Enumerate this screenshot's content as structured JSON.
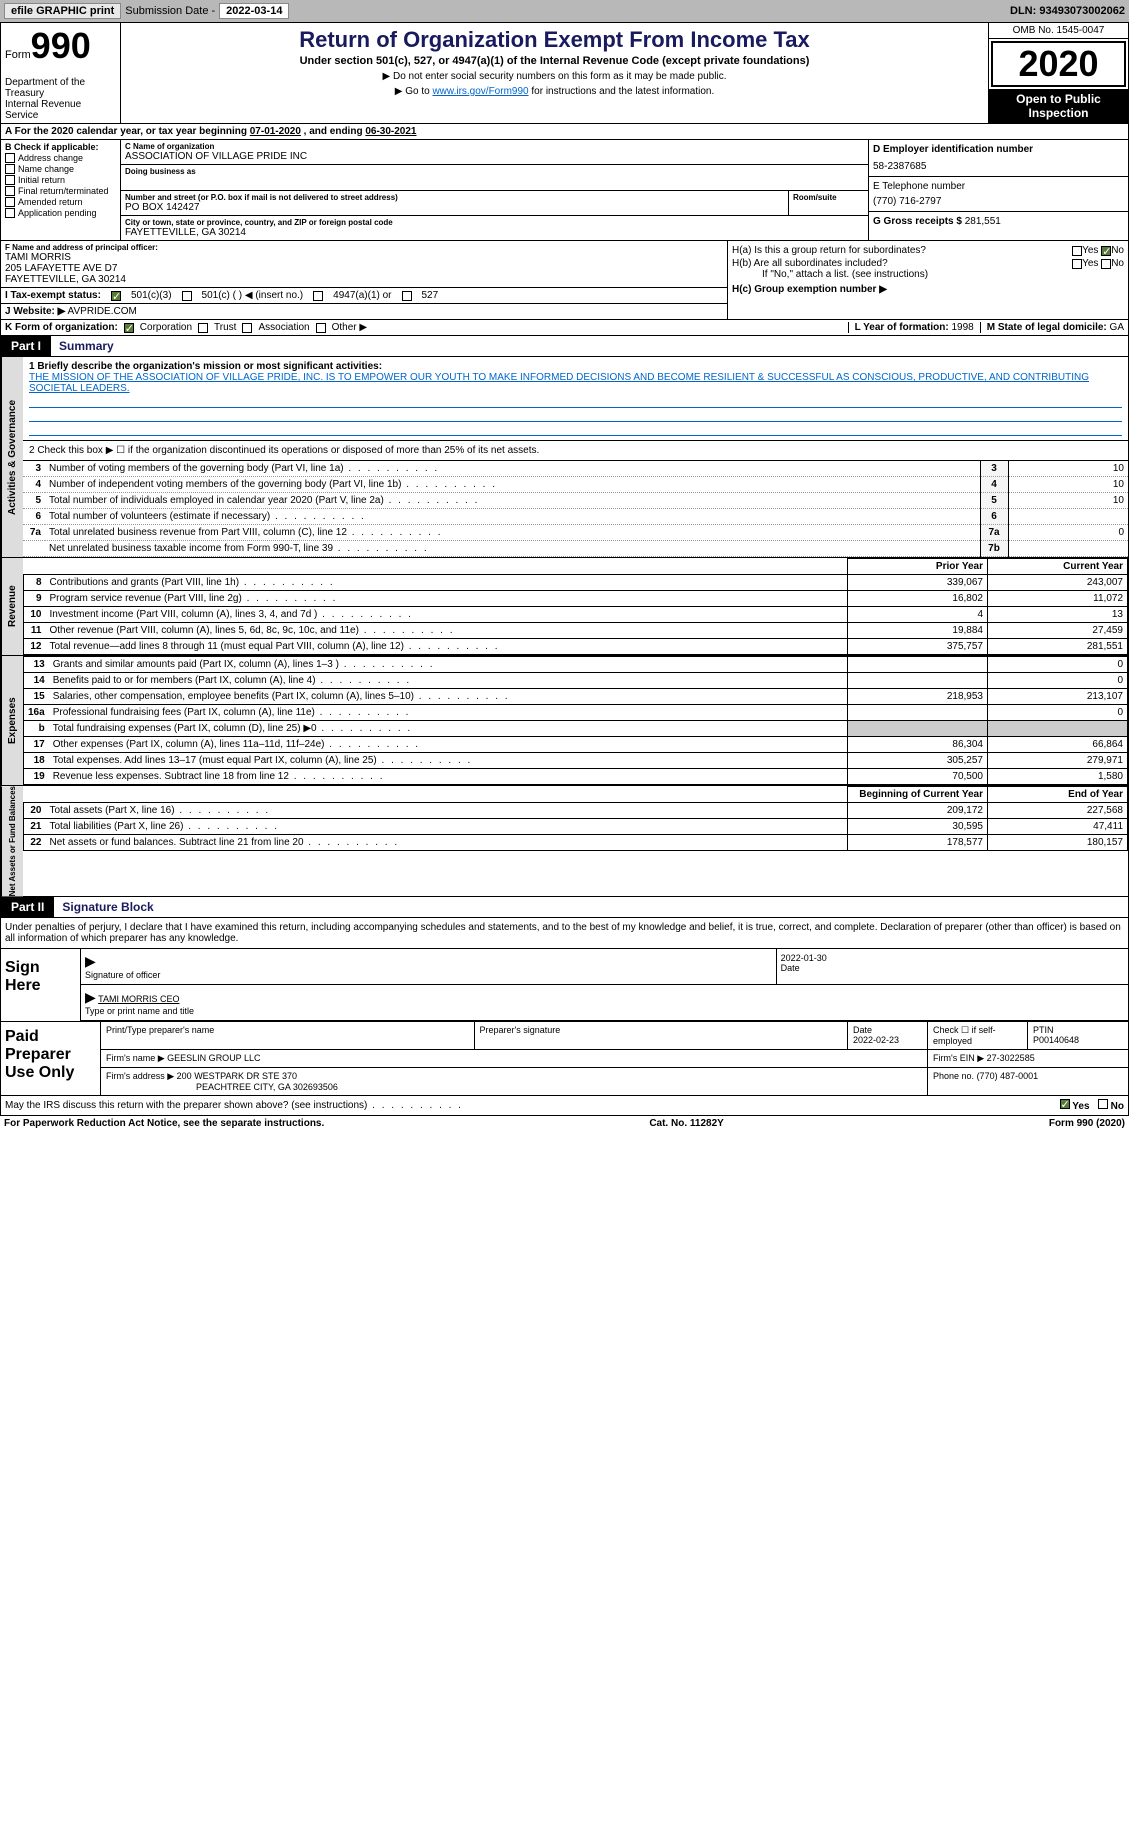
{
  "topbar": {
    "efile_label": "efile GRAPHIC print",
    "sub_date_label": "Submission Date -",
    "sub_date": "2022-03-14",
    "dln_label": "DLN:",
    "dln": "93493073002062"
  },
  "header": {
    "form_word": "Form",
    "form_num": "990",
    "dept": "Department of the Treasury\nInternal Revenue Service",
    "title": "Return of Organization Exempt From Income Tax",
    "subtitle": "Under section 501(c), 527, or 4947(a)(1) of the Internal Revenue Code (except private foundations)",
    "note1": "▶ Do not enter social security numbers on this form as it may be made public.",
    "note2_pre": "▶ Go to ",
    "note2_link": "www.irs.gov/Form990",
    "note2_post": " for instructions and the latest information.",
    "omb": "OMB No. 1545-0047",
    "year": "2020",
    "open": "Open to Public Inspection"
  },
  "period": {
    "text_a": "A For the 2020 calendar year, or tax year beginning ",
    "begin": "07-01-2020",
    "text_b": " , and ending ",
    "end": "06-30-2021"
  },
  "section_b": {
    "header": "B Check if applicable:",
    "items": [
      "Address change",
      "Name change",
      "Initial return",
      "Final return/terminated",
      "Amended return",
      "Application pending"
    ]
  },
  "section_c": {
    "label": "C Name of organization",
    "org_name": "ASSOCIATION OF VILLAGE PRIDE INC",
    "dba_label": "Doing business as",
    "addr_label": "Number and street (or P.O. box if mail is not delivered to street address)",
    "room_label": "Room/suite",
    "addr": "PO BOX 142427",
    "city_label": "City or town, state or province, country, and ZIP or foreign postal code",
    "city": "FAYETTEVILLE, GA  30214"
  },
  "section_d": {
    "label": "D Employer identification number",
    "ein": "58-2387685"
  },
  "section_e": {
    "label": "E Telephone number",
    "phone": "(770) 716-2797"
  },
  "section_g": {
    "label": "G Gross receipts $",
    "amount": "281,551"
  },
  "section_f": {
    "label": "F Name and address of principal officer:",
    "name": "TAMI MORRIS",
    "addr1": "205 LAFAYETTE AVE D7",
    "addr2": "FAYETTEVILLE, GA  30214"
  },
  "section_h": {
    "ha_label": "H(a)  Is this a group return for subordinates?",
    "hb_label": "H(b)  Are all subordinates included?",
    "hb_note": "If \"No,\" attach a list. (see instructions)",
    "hc_label": "H(c)  Group exemption number ▶",
    "yes": "Yes",
    "no": "No"
  },
  "section_i": {
    "label": "I    Tax-exempt status:",
    "opts": [
      "501(c)(3)",
      "501(c) (  ) ◀ (insert no.)",
      "4947(a)(1) or",
      "527"
    ]
  },
  "section_j": {
    "label": "J    Website: ▶",
    "url": "AVPRIDE.COM"
  },
  "section_k": {
    "label": "K Form of organization:",
    "opts": [
      "Corporation",
      "Trust",
      "Association",
      "Other ▶"
    ]
  },
  "section_lm": {
    "l_label": "L Year of formation:",
    "l_val": "1998",
    "m_label": "M State of legal domicile:",
    "m_val": "GA"
  },
  "part1": {
    "label": "Part I",
    "title": "Summary",
    "line1_label": "1  Briefly describe the organization's mission or most significant activities:",
    "mission": "THE MISSION OF THE ASSOCIATION OF VILLAGE PRIDE, INC. IS TO EMPOWER OUR YOUTH TO MAKE INFORMED DECISIONS AND BECOME RESILIENT & SUCCESSFUL AS CONSCIOUS, PRODUCTIVE, AND CONTRIBUTING SOCIETAL LEADERS.",
    "line2": "2  Check this box ▶ ☐  if the organization discontinued its operations or disposed of more than 25% of its net assets.",
    "strip_gov": "Activities & Governance",
    "strip_rev": "Revenue",
    "strip_exp": "Expenses",
    "strip_net": "Net Assets or Fund Balances",
    "gov_rows": [
      {
        "n": "3",
        "d": "Number of voting members of the governing body (Part VI, line 1a)",
        "box": "3",
        "v": "10"
      },
      {
        "n": "4",
        "d": "Number of independent voting members of the governing body (Part VI, line 1b)",
        "box": "4",
        "v": "10"
      },
      {
        "n": "5",
        "d": "Total number of individuals employed in calendar year 2020 (Part V, line 2a)",
        "box": "5",
        "v": "10"
      },
      {
        "n": "6",
        "d": "Total number of volunteers (estimate if necessary)",
        "box": "6",
        "v": ""
      },
      {
        "n": "7a",
        "d": "Total unrelated business revenue from Part VIII, column (C), line 12",
        "box": "7a",
        "v": "0"
      },
      {
        "n": "",
        "d": "Net unrelated business taxable income from Form 990-T, line 39",
        "box": "7b",
        "v": ""
      }
    ],
    "col_prior": "Prior Year",
    "col_curr": "Current Year",
    "rev_rows": [
      {
        "n": "8",
        "d": "Contributions and grants (Part VIII, line 1h)",
        "p": "339,067",
        "c": "243,007"
      },
      {
        "n": "9",
        "d": "Program service revenue (Part VIII, line 2g)",
        "p": "16,802",
        "c": "11,072"
      },
      {
        "n": "10",
        "d": "Investment income (Part VIII, column (A), lines 3, 4, and 7d )",
        "p": "4",
        "c": "13"
      },
      {
        "n": "11",
        "d": "Other revenue (Part VIII, column (A), lines 5, 6d, 8c, 9c, 10c, and 11e)",
        "p": "19,884",
        "c": "27,459"
      },
      {
        "n": "12",
        "d": "Total revenue—add lines 8 through 11 (must equal Part VIII, column (A), line 12)",
        "p": "375,757",
        "c": "281,551"
      }
    ],
    "exp_rows": [
      {
        "n": "13",
        "d": "Grants and similar amounts paid (Part IX, column (A), lines 1–3 )",
        "p": "",
        "c": "0"
      },
      {
        "n": "14",
        "d": "Benefits paid to or for members (Part IX, column (A), line 4)",
        "p": "",
        "c": "0"
      },
      {
        "n": "15",
        "d": "Salaries, other compensation, employee benefits (Part IX, column (A), lines 5–10)",
        "p": "218,953",
        "c": "213,107"
      },
      {
        "n": "16a",
        "d": "Professional fundraising fees (Part IX, column (A), line 11e)",
        "p": "",
        "c": "0"
      },
      {
        "n": "b",
        "d": "Total fundraising expenses (Part IX, column (D), line 25) ▶0",
        "p": "SHADE",
        "c": "SHADE"
      },
      {
        "n": "17",
        "d": "Other expenses (Part IX, column (A), lines 11a–11d, 11f–24e)",
        "p": "86,304",
        "c": "66,864"
      },
      {
        "n": "18",
        "d": "Total expenses. Add lines 13–17 (must equal Part IX, column (A), line 25)",
        "p": "305,257",
        "c": "279,971"
      },
      {
        "n": "19",
        "d": "Revenue less expenses. Subtract line 18 from line 12",
        "p": "70,500",
        "c": "1,580"
      }
    ],
    "col_begin": "Beginning of Current Year",
    "col_end": "End of Year",
    "net_rows": [
      {
        "n": "20",
        "d": "Total assets (Part X, line 16)",
        "p": "209,172",
        "c": "227,568"
      },
      {
        "n": "21",
        "d": "Total liabilities (Part X, line 26)",
        "p": "30,595",
        "c": "47,411"
      },
      {
        "n": "22",
        "d": "Net assets or fund balances. Subtract line 21 from line 20",
        "p": "178,577",
        "c": "180,157"
      }
    ]
  },
  "part2": {
    "label": "Part II",
    "title": "Signature Block",
    "intro": "Under penalties of perjury, I declare that I have examined this return, including accompanying schedules and statements, and to the best of my knowledge and belief, it is true, correct, and complete. Declaration of preparer (other than officer) is based on all information of which preparer has any knowledge.",
    "sign_here": "Sign Here",
    "sig_officer": "Signature of officer",
    "sig_date_label": "Date",
    "sig_date": "2022-01-30",
    "officer_name": "TAMI MORRIS CEO",
    "officer_type": "Type or print name and title",
    "paid_prep": "Paid Preparer Use Only",
    "prep_name_label": "Print/Type preparer's name",
    "prep_sig_label": "Preparer's signature",
    "prep_date_label": "Date",
    "prep_date": "2022-02-23",
    "check_self": "Check ☐ if self-employed",
    "ptin_label": "PTIN",
    "ptin": "P00140648",
    "firm_name_label": "Firm's name    ▶",
    "firm_name": "GEESLIN GROUP LLC",
    "firm_ein_label": "Firm's EIN ▶",
    "firm_ein": "27-3022585",
    "firm_addr_label": "Firm's address ▶",
    "firm_addr": "200 WESTPARK DR STE 370",
    "firm_city": "PEACHTREE CITY, GA  302693506",
    "firm_phone_label": "Phone no.",
    "firm_phone": "(770) 487-0001"
  },
  "footer": {
    "discuss": "May the IRS discuss this return with the preparer shown above? (see instructions)",
    "yes": "Yes",
    "no": "No",
    "paperwork": "For Paperwork Reduction Act Notice, see the separate instructions.",
    "cat": "Cat. No. 11282Y",
    "form": "Form 990 (2020)"
  },
  "colors": {
    "topbar_bg": "#b8b8b8",
    "title_color": "#1a1a5e",
    "link_color": "#0066cc",
    "check_green": "#5a7a3a",
    "vstrip_bg": "#dddddd",
    "shade": "#cccccc"
  }
}
